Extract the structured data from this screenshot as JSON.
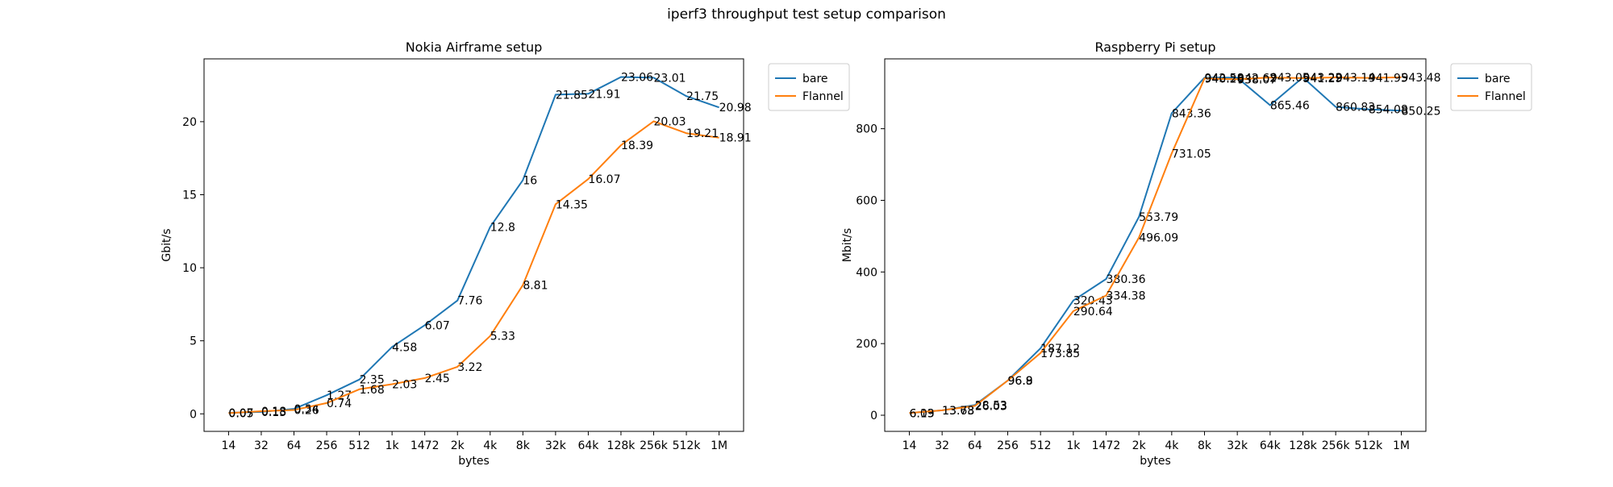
{
  "figure": {
    "suptitle": "iperf3 throughput test setup comparison"
  },
  "colors": {
    "bare": "#1f77b4",
    "flannel": "#ff7f0e"
  },
  "chart_data": [
    {
      "type": "line",
      "title": "Nokia Airframe setup",
      "xlabel": "bytes",
      "ylabel": "Gbit/s",
      "categories": [
        "14",
        "32",
        "64",
        "256",
        "512",
        "1k",
        "1472",
        "2k",
        "4k",
        "8k",
        "32k",
        "64k",
        "128k",
        "256k",
        "512k",
        "1M"
      ],
      "ylim": [
        -1.2,
        24.3
      ],
      "yticks": [
        0,
        5,
        10,
        15,
        20
      ],
      "legend": "outside-top-right",
      "grid": false,
      "series": [
        {
          "name": "bare",
          "color": "#1f77b4",
          "values": [
            0.07,
            0.13,
            0.34,
            1.27,
            2.35,
            4.58,
            6.07,
            7.76,
            12.8,
            16.0,
            21.85,
            21.91,
            23.06,
            23.01,
            21.75,
            20.98
          ]
        },
        {
          "name": "Flannel",
          "color": "#ff7f0e",
          "values": [
            0.05,
            0.18,
            0.26,
            0.74,
            1.68,
            2.03,
            2.45,
            3.22,
            5.33,
            8.81,
            14.35,
            16.07,
            18.39,
            20.03,
            19.21,
            18.91
          ]
        }
      ]
    },
    {
      "type": "line",
      "title": "Raspberry Pi setup",
      "xlabel": "bytes",
      "ylabel": "Mbit/s",
      "categories": [
        "14",
        "32",
        "64",
        "256",
        "512",
        "1k",
        "1472",
        "2k",
        "4k",
        "8k",
        "32k",
        "64k",
        "128k",
        "256k",
        "512k",
        "1M"
      ],
      "ylim": [
        -45,
        995
      ],
      "yticks": [
        0,
        200,
        400,
        600,
        800
      ],
      "legend": "outside-top-right",
      "grid": false,
      "series": [
        {
          "name": "bare",
          "color": "#1f77b4",
          "values": [
            6.19,
            13.68,
            28.53,
            96.9,
            187.12,
            320.43,
            380.36,
            553.79,
            843.36,
            942.58,
            942.62,
            865.46,
            943.22,
            860.83,
            854.08,
            850.25
          ]
        },
        {
          "name": "Flannel",
          "color": "#ff7f0e",
          "values": [
            6.03,
            13.73,
            26.03,
            96.8,
            173.85,
            290.64,
            334.38,
            496.09,
            731.05,
            940.26,
            938.07,
            943.05,
            941.29,
            943.14,
            941.95,
            943.48
          ]
        }
      ]
    }
  ]
}
